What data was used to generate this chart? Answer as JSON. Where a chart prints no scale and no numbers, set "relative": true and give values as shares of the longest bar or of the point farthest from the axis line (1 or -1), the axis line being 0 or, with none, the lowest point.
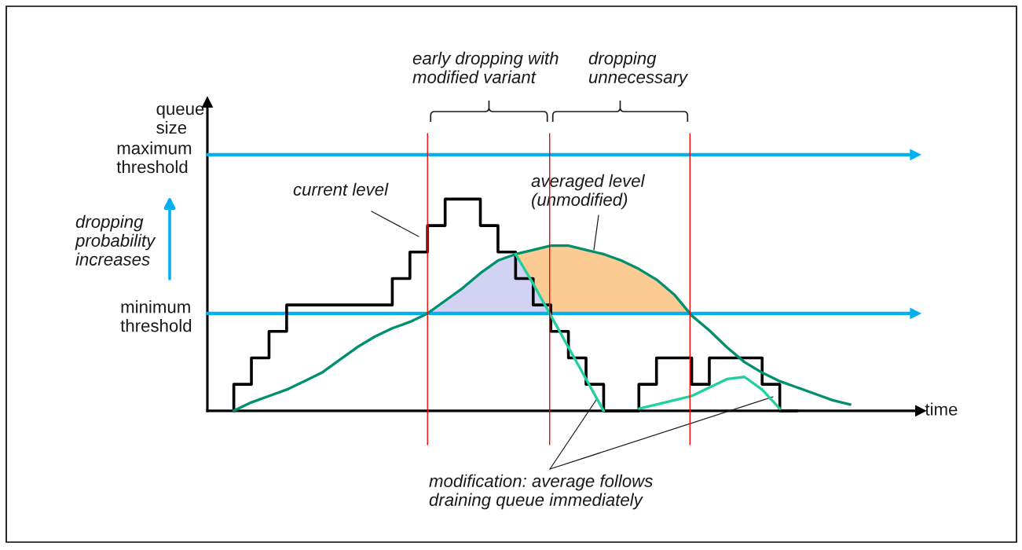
{
  "chart_data": {
    "type": "line",
    "relative": true,
    "grid": "x",
    "xlabel": "time",
    "ylabel": "queue\nsize",
    "categories": [
      null,
      null,
      null,
      null,
      null,
      null,
      null,
      null,
      null,
      null,
      null,
      null,
      null,
      null,
      null,
      null,
      null,
      null,
      null,
      null,
      null,
      null,
      null,
      null,
      null,
      null,
      null,
      null,
      null,
      null,
      null,
      null,
      null,
      null,
      null,
      null
    ],
    "series": [
      {
        "type": "area",
        "color": "#fccb94",
        "values": [
          null,
          null,
          null,
          null,
          null,
          null,
          null,
          null,
          null,
          null,
          null,
          null,
          null,
          null,
          null,
          null,
          0.74,
          0.76,
          0.78,
          0.78,
          0.76,
          0.74,
          0.71,
          0.67,
          0.62,
          0.55,
          0.46,
          null,
          null,
          null,
          null,
          null,
          null,
          null,
          null,
          null
        ]
      },
      {
        "type": "area",
        "color": "#d2d2f2",
        "values": [
          null,
          null,
          null,
          null,
          null,
          null,
          null,
          null,
          null,
          null,
          null,
          0.46,
          0.52,
          0.58,
          0.65,
          0.71,
          0.74,
          0.6,
          0.46,
          null,
          null,
          null,
          null,
          null,
          null,
          null,
          null,
          null,
          null,
          null,
          null,
          null,
          null,
          null,
          null,
          null
        ]
      },
      {
        "type": "step",
        "color": "#000000",
        "values": [
          0,
          0.125,
          0.25,
          0.375,
          0.5,
          0.5,
          0.5,
          0.5,
          0.5,
          0.5,
          0.625,
          0.75,
          0.875,
          1,
          1,
          0.875,
          0.75,
          0.625,
          0.5,
          0.375,
          0.25,
          0.125,
          0,
          0,
          0.125,
          0.25,
          0.25,
          0.125,
          0.25,
          0.25,
          0.25,
          0.125,
          0,
          null,
          null,
          null
        ]
      },
      {
        "color": "#009070",
        "values": [
          0,
          0.04,
          0.07,
          0.1,
          0.14,
          0.18,
          0.24,
          0.3,
          0.35,
          0.39,
          0.42,
          0.46,
          0.52,
          0.58,
          0.65,
          0.71,
          0.74,
          0.76,
          0.78,
          0.78,
          0.76,
          0.74,
          0.71,
          0.67,
          0.62,
          0.55,
          0.45,
          0.38,
          0.3,
          0.23,
          0.18,
          0.14,
          0.11,
          0.08,
          0.05,
          0.03
        ]
      },
      {
        "color": "#20d0a0",
        "values": [
          null,
          null,
          null,
          null,
          null,
          null,
          null,
          null,
          null,
          null,
          null,
          null,
          null,
          null,
          null,
          null,
          0.74,
          0.6,
          0.45,
          0.3,
          0.15,
          0,
          null,
          0.01,
          0.03,
          0.05,
          0.07,
          0.11,
          0.15,
          0.16,
          0.1,
          0.01,
          null,
          null,
          null,
          null
        ]
      }
    ],
    "ref_lines": [
      {
        "axis": "y",
        "value": 1.21,
        "label": "maximum\nthreshold",
        "color": "#00b0f0"
      },
      {
        "axis": "y",
        "value": 0.46,
        "label": "minimum\nthreshold",
        "color": "#00b0f0"
      }
    ],
    "annotations": [
      "current level",
      "averaged level\n(unmodified)",
      "dropping\nprobability\nincreases",
      "early dropping with\nmodified variant",
      "dropping\nunnecessary",
      "modification: average follows\ndraining queue immediately"
    ]
  }
}
